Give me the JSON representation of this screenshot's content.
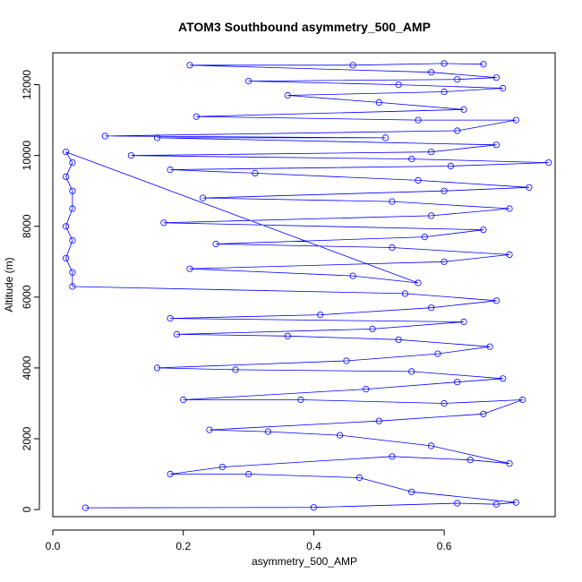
{
  "chart_data": {
    "type": "scatter",
    "connected": true,
    "title": "ATOM3 Southbound asymmetry_500_AMP",
    "xlabel": "asymmetry_500_AMP",
    "ylabel": "Altitude (m)",
    "xlim": [
      0.0,
      0.77
    ],
    "ylim": [
      -200,
      12900
    ],
    "x_ticks": [
      0.0,
      0.2,
      0.4,
      0.6
    ],
    "x_tick_labels": [
      "0.0",
      "0.2",
      "0.4",
      "0.6"
    ],
    "y_ticks": [
      0,
      2000,
      4000,
      6000,
      8000,
      10000,
      12000
    ],
    "y_tick_labels": [
      "0",
      "2000",
      "4000",
      "6000",
      "8000",
      "10000",
      "12000"
    ],
    "marker": "open-circle",
    "color": "#0000ff",
    "grid": false,
    "legend": "none",
    "series": [
      {
        "points": [
          [
            0.05,
            50
          ],
          [
            0.4,
            60
          ],
          [
            0.62,
            180
          ],
          [
            0.68,
            150
          ],
          [
            0.71,
            200
          ],
          [
            0.55,
            500
          ],
          [
            0.47,
            900
          ],
          [
            0.3,
            1000
          ],
          [
            0.18,
            1000
          ],
          [
            0.26,
            1200
          ],
          [
            0.52,
            1500
          ],
          [
            0.64,
            1400
          ],
          [
            0.7,
            1300
          ],
          [
            0.58,
            1800
          ],
          [
            0.44,
            2100
          ],
          [
            0.33,
            2200
          ],
          [
            0.24,
            2250
          ],
          [
            0.5,
            2500
          ],
          [
            0.66,
            2700
          ],
          [
            0.72,
            3100
          ],
          [
            0.6,
            3000
          ],
          [
            0.38,
            3100
          ],
          [
            0.2,
            3100
          ],
          [
            0.48,
            3400
          ],
          [
            0.62,
            3600
          ],
          [
            0.69,
            3700
          ],
          [
            0.55,
            3900
          ],
          [
            0.28,
            3950
          ],
          [
            0.16,
            4000
          ],
          [
            0.45,
            4200
          ],
          [
            0.59,
            4400
          ],
          [
            0.67,
            4600
          ],
          [
            0.53,
            4800
          ],
          [
            0.36,
            4900
          ],
          [
            0.19,
            4950
          ],
          [
            0.49,
            5100
          ],
          [
            0.63,
            5300
          ],
          [
            0.18,
            5400
          ],
          [
            0.41,
            5500
          ],
          [
            0.58,
            5700
          ],
          [
            0.68,
            5900
          ],
          [
            0.54,
            6100
          ],
          [
            0.03,
            6300
          ],
          [
            0.03,
            6700
          ],
          [
            0.02,
            7100
          ],
          [
            0.03,
            7600
          ],
          [
            0.02,
            8000
          ],
          [
            0.03,
            8500
          ],
          [
            0.03,
            9000
          ],
          [
            0.02,
            9400
          ],
          [
            0.03,
            9800
          ],
          [
            0.02,
            10100
          ],
          [
            0.56,
            6400
          ],
          [
            0.46,
            6600
          ],
          [
            0.21,
            6800
          ],
          [
            0.6,
            7000
          ],
          [
            0.7,
            7200
          ],
          [
            0.52,
            7400
          ],
          [
            0.25,
            7500
          ],
          [
            0.57,
            7700
          ],
          [
            0.66,
            7900
          ],
          [
            0.17,
            8100
          ],
          [
            0.58,
            8300
          ],
          [
            0.7,
            8500
          ],
          [
            0.52,
            8700
          ],
          [
            0.23,
            8800
          ],
          [
            0.6,
            9000
          ],
          [
            0.73,
            9100
          ],
          [
            0.56,
            9300
          ],
          [
            0.31,
            9500
          ],
          [
            0.18,
            9600
          ],
          [
            0.61,
            9700
          ],
          [
            0.76,
            9800
          ],
          [
            0.55,
            9900
          ],
          [
            0.12,
            10000
          ],
          [
            0.58,
            10100
          ],
          [
            0.68,
            10300
          ],
          [
            0.16,
            10500
          ],
          [
            0.51,
            10500
          ],
          [
            0.08,
            10550
          ],
          [
            0.62,
            10700
          ],
          [
            0.71,
            11000
          ],
          [
            0.56,
            11000
          ],
          [
            0.22,
            11100
          ],
          [
            0.63,
            11300
          ],
          [
            0.5,
            11500
          ],
          [
            0.36,
            11700
          ],
          [
            0.6,
            11800
          ],
          [
            0.69,
            11900
          ],
          [
            0.53,
            12000
          ],
          [
            0.3,
            12100
          ],
          [
            0.62,
            12150
          ],
          [
            0.68,
            12200
          ],
          [
            0.58,
            12350
          ],
          [
            0.21,
            12550
          ],
          [
            0.46,
            12550
          ],
          [
            0.6,
            12600
          ],
          [
            0.66,
            12580
          ]
        ]
      }
    ]
  }
}
